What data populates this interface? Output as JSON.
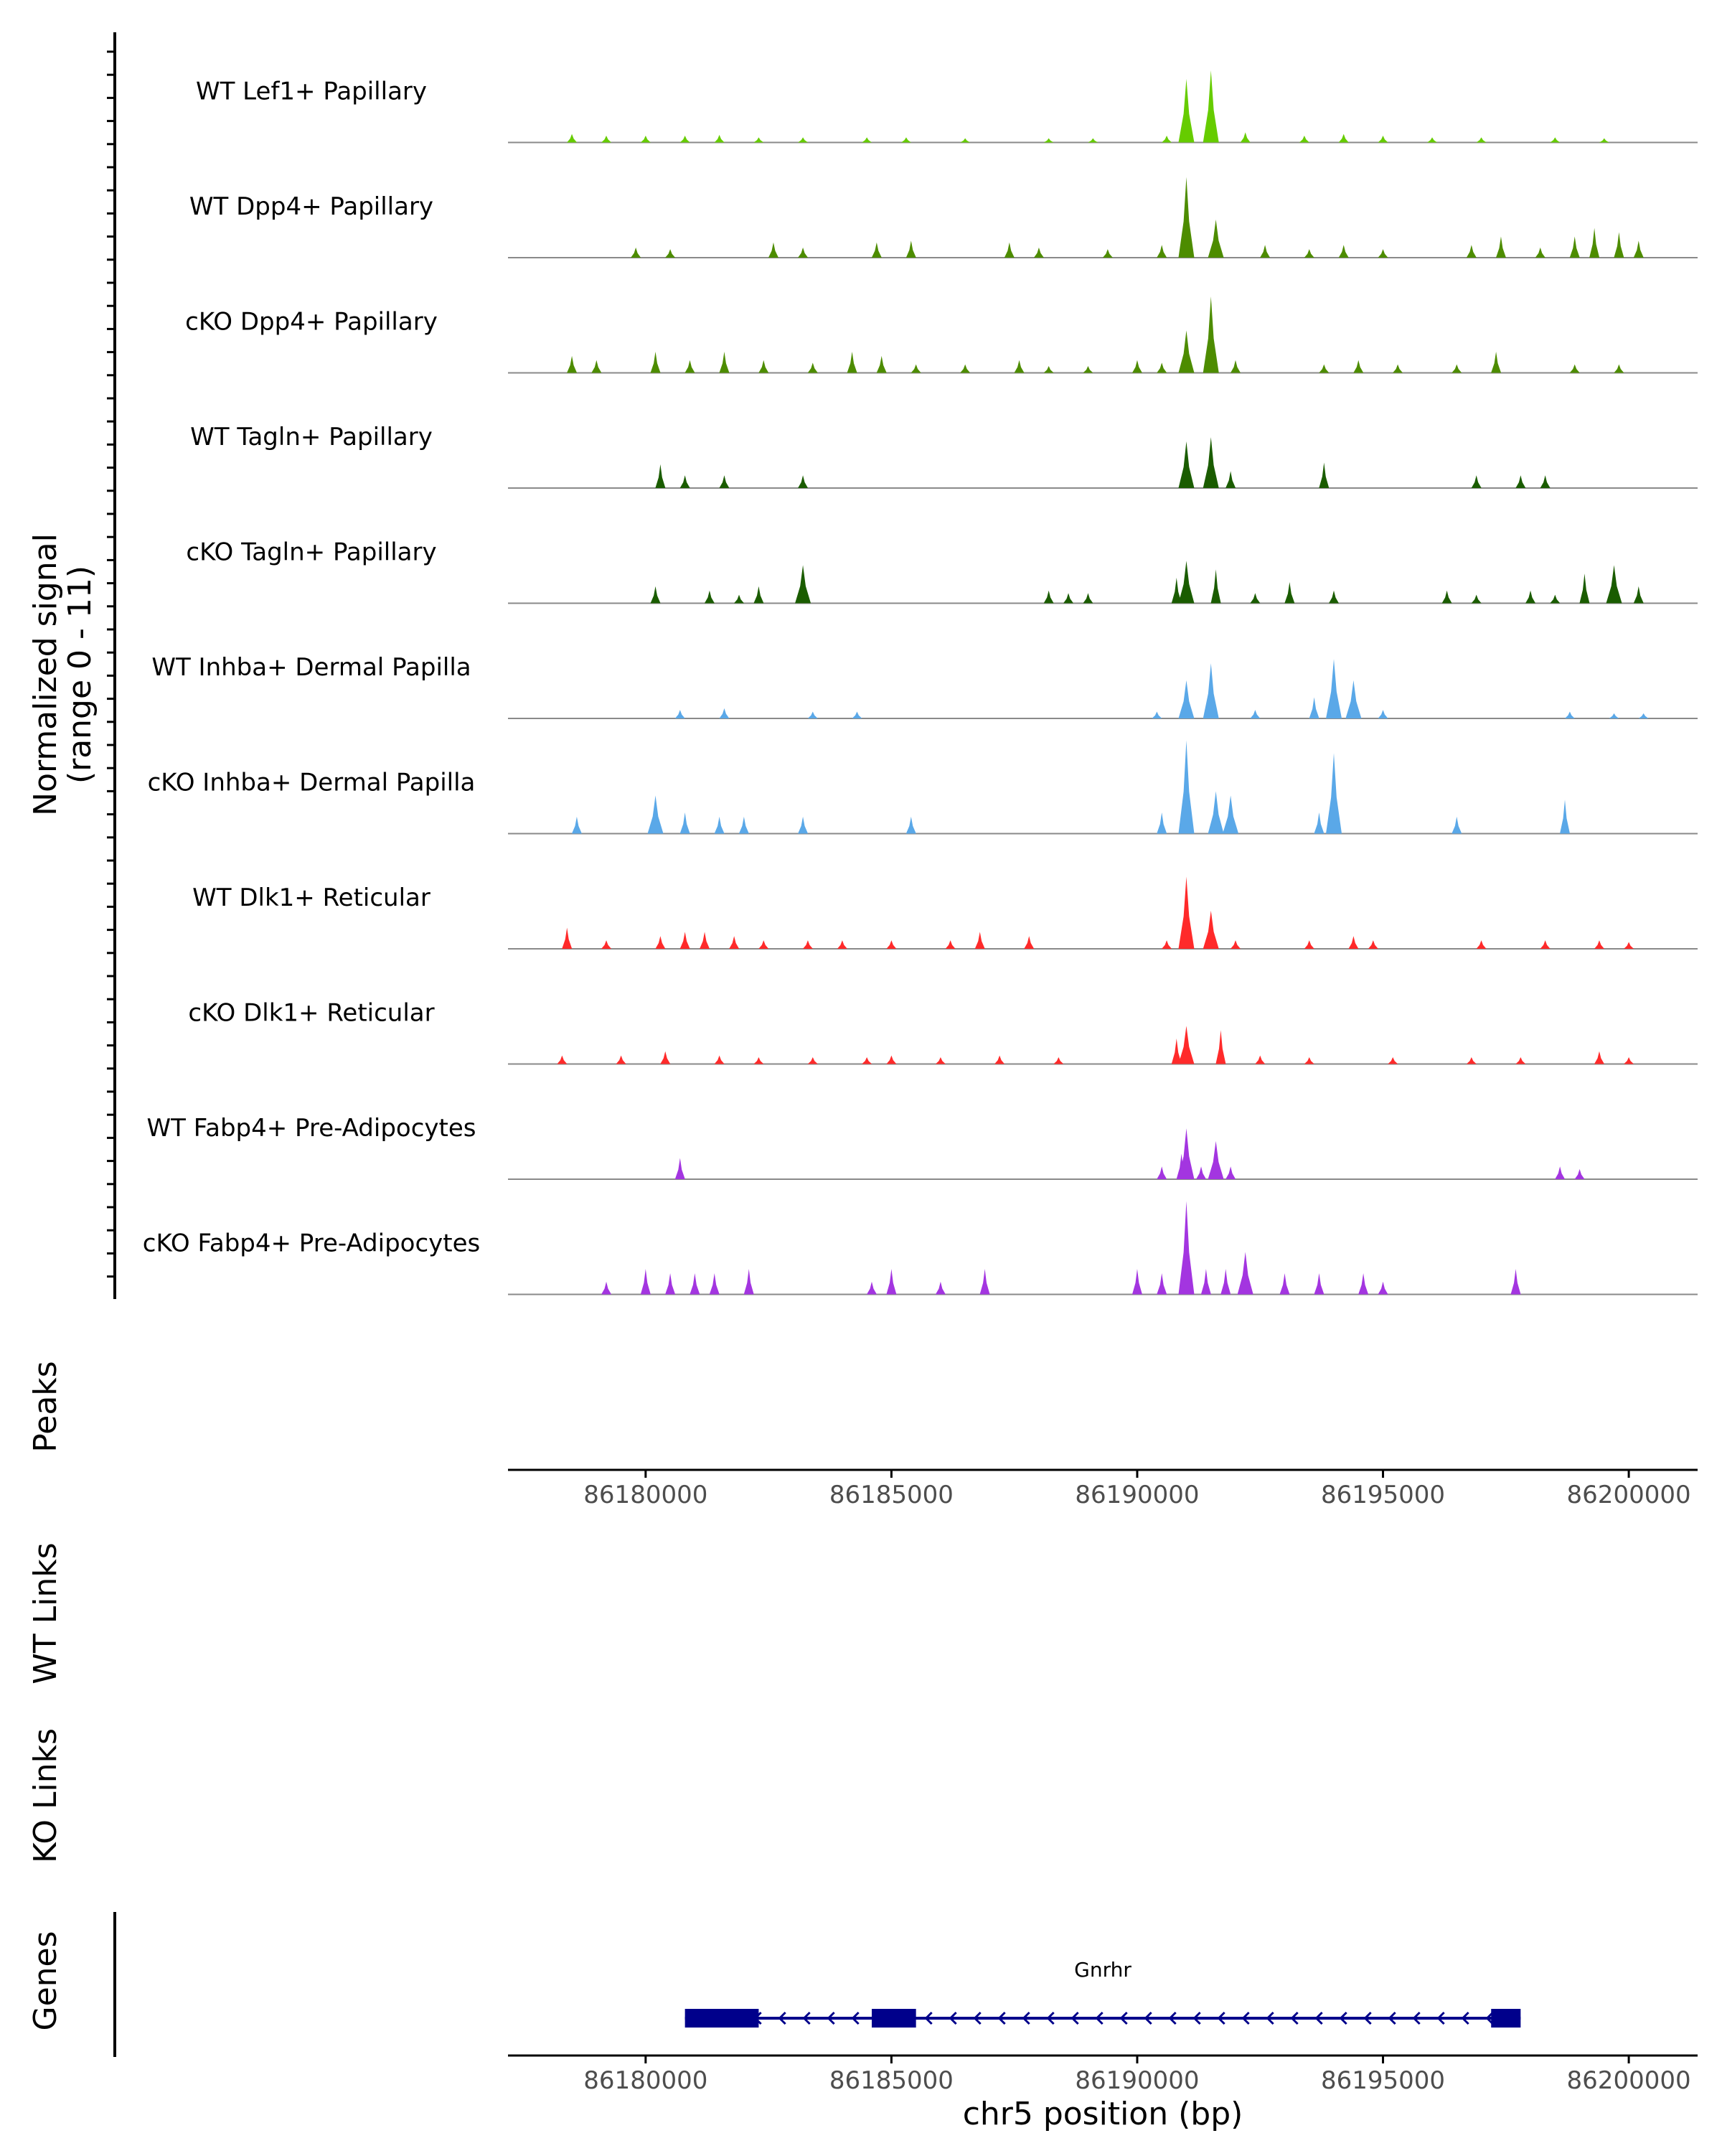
{
  "chart_data": {
    "type": "area",
    "title": "",
    "y_axis_label_line1": "Normalized signal",
    "y_axis_label_line2": "(range 0 - 11)",
    "ylim": [
      0,
      11
    ],
    "xlim": [
      86177200,
      86201400
    ],
    "xlabel": "chr5 position (bp)",
    "x_ticks": [
      86180000,
      86185000,
      86190000,
      86195000,
      86200000
    ],
    "x_tick_labels": [
      "86180000",
      "86185000",
      "86190000",
      "86195000",
      "86200000"
    ],
    "tracks": [
      {
        "name": "WT Lef1+ Papillary",
        "color": "#66cc00",
        "peaks": [
          [
            86178500,
            1.0
          ],
          [
            86179200,
            0.8
          ],
          [
            86180000,
            0.8
          ],
          [
            86180800,
            0.8
          ],
          [
            86181500,
            0.9
          ],
          [
            86182300,
            0.6
          ],
          [
            86183200,
            0.6
          ],
          [
            86184500,
            0.6
          ],
          [
            86185300,
            0.6
          ],
          [
            86186500,
            0.5
          ],
          [
            86188200,
            0.5
          ],
          [
            86189100,
            0.5
          ],
          [
            86190600,
            0.8
          ],
          [
            86191000,
            7.5
          ],
          [
            86191500,
            8.5
          ],
          [
            86192200,
            1.2
          ],
          [
            86193400,
            0.8
          ],
          [
            86194200,
            1.0
          ],
          [
            86195000,
            0.8
          ],
          [
            86196000,
            0.6
          ],
          [
            86197000,
            0.6
          ],
          [
            86198500,
            0.6
          ],
          [
            86199500,
            0.5
          ]
        ]
      },
      {
        "name": "WT Dpp4+ Papillary",
        "color": "#4d8c00",
        "peaks": [
          [
            86179800,
            1.2
          ],
          [
            86180500,
            1.0
          ],
          [
            86182600,
            1.8
          ],
          [
            86183200,
            1.2
          ],
          [
            86184700,
            1.8
          ],
          [
            86185400,
            2.0
          ],
          [
            86187400,
            1.8
          ],
          [
            86188000,
            1.2
          ],
          [
            86189400,
            1.0
          ],
          [
            86190500,
            1.5
          ],
          [
            86191000,
            9.5
          ],
          [
            86191600,
            4.5
          ],
          [
            86192600,
            1.5
          ],
          [
            86193500,
            1.0
          ],
          [
            86194200,
            1.5
          ],
          [
            86195000,
            1.0
          ],
          [
            86196800,
            1.5
          ],
          [
            86197400,
            2.5
          ],
          [
            86198200,
            1.2
          ],
          [
            86198900,
            2.5
          ],
          [
            86199300,
            3.5
          ],
          [
            86199800,
            3.0
          ],
          [
            86200200,
            2.0
          ]
        ]
      },
      {
        "name": "cKO Dpp4+ Papillary",
        "color": "#4d8c00",
        "peaks": [
          [
            86178500,
            2.0
          ],
          [
            86179000,
            1.5
          ],
          [
            86180200,
            2.5
          ],
          [
            86180900,
            1.5
          ],
          [
            86181600,
            2.5
          ],
          [
            86182400,
            1.5
          ],
          [
            86183400,
            1.2
          ],
          [
            86184200,
            2.5
          ],
          [
            86184800,
            2.0
          ],
          [
            86185500,
            1.0
          ],
          [
            86186500,
            1.0
          ],
          [
            86187600,
            1.5
          ],
          [
            86188200,
            0.8
          ],
          [
            86189000,
            0.8
          ],
          [
            86190000,
            1.5
          ],
          [
            86190500,
            1.2
          ],
          [
            86191000,
            5.0
          ],
          [
            86191500,
            9.0
          ],
          [
            86192000,
            1.5
          ],
          [
            86193800,
            1.0
          ],
          [
            86194500,
            1.5
          ],
          [
            86195300,
            1.0
          ],
          [
            86196500,
            1.0
          ],
          [
            86197300,
            2.5
          ],
          [
            86198900,
            1.0
          ],
          [
            86199800,
            1.0
          ]
        ]
      },
      {
        "name": "WT Tagln+ Papillary",
        "color": "#1a5c00",
        "peaks": [
          [
            86180300,
            2.8
          ],
          [
            86180800,
            1.5
          ],
          [
            86181600,
            1.5
          ],
          [
            86183200,
            1.5
          ],
          [
            86191000,
            5.5
          ],
          [
            86191500,
            6.0
          ],
          [
            86191900,
            2.0
          ],
          [
            86193800,
            3.0
          ],
          [
            86196900,
            1.5
          ],
          [
            86197800,
            1.5
          ],
          [
            86198300,
            1.5
          ]
        ]
      },
      {
        "name": "cKO Tagln+ Papillary",
        "color": "#1a5c00",
        "peaks": [
          [
            86180200,
            2.0
          ],
          [
            86181300,
            1.5
          ],
          [
            86181900,
            1.0
          ],
          [
            86182300,
            2.0
          ],
          [
            86183200,
            4.5
          ],
          [
            86188200,
            1.5
          ],
          [
            86188600,
            1.2
          ],
          [
            86189000,
            1.2
          ],
          [
            86190800,
            3.0
          ],
          [
            86191000,
            5.0
          ],
          [
            86191600,
            4.0
          ],
          [
            86192400,
            1.2
          ],
          [
            86193100,
            2.5
          ],
          [
            86194000,
            1.5
          ],
          [
            86196300,
            1.5
          ],
          [
            86196900,
            1.0
          ],
          [
            86198000,
            1.5
          ],
          [
            86198500,
            1.0
          ],
          [
            86199100,
            3.5
          ],
          [
            86199700,
            4.5
          ],
          [
            86200200,
            2.0
          ]
        ]
      },
      {
        "name": "WT Inhba+ Dermal Papilla",
        "color": "#5aa8e8",
        "peaks": [
          [
            86180700,
            1.0
          ],
          [
            86181600,
            1.2
          ],
          [
            86183400,
            0.8
          ],
          [
            86184300,
            0.8
          ],
          [
            86190400,
            0.8
          ],
          [
            86191000,
            4.5
          ],
          [
            86191500,
            6.5
          ],
          [
            86192400,
            1.0
          ],
          [
            86193600,
            2.5
          ],
          [
            86194000,
            7.0
          ],
          [
            86194400,
            4.5
          ],
          [
            86195000,
            1.0
          ],
          [
            86198800,
            0.8
          ],
          [
            86199700,
            0.6
          ],
          [
            86200300,
            0.6
          ]
        ]
      },
      {
        "name": "cKO Inhba+ Dermal Papilla",
        "color": "#5aa8e8",
        "peaks": [
          [
            86178600,
            2.0
          ],
          [
            86180200,
            4.5
          ],
          [
            86180800,
            2.5
          ],
          [
            86181500,
            2.0
          ],
          [
            86182000,
            2.0
          ],
          [
            86183200,
            2.0
          ],
          [
            86185400,
            2.0
          ],
          [
            86190500,
            2.5
          ],
          [
            86191000,
            11.0
          ],
          [
            86191600,
            5.0
          ],
          [
            86191900,
            4.5
          ],
          [
            86193700,
            2.5
          ],
          [
            86194000,
            9.5
          ],
          [
            86196500,
            2.0
          ],
          [
            86198700,
            4.0
          ]
        ]
      },
      {
        "name": "WT Dlk1+ Reticular",
        "color": "#ff2a2a",
        "peaks": [
          [
            86178400,
            2.5
          ],
          [
            86179200,
            1.0
          ],
          [
            86180300,
            1.5
          ],
          [
            86180800,
            2.0
          ],
          [
            86181200,
            2.0
          ],
          [
            86181800,
            1.5
          ],
          [
            86182400,
            1.0
          ],
          [
            86183300,
            1.0
          ],
          [
            86184000,
            1.0
          ],
          [
            86185000,
            1.0
          ],
          [
            86186200,
            1.0
          ],
          [
            86186800,
            2.0
          ],
          [
            86187800,
            1.5
          ],
          [
            86190600,
            1.0
          ],
          [
            86191000,
            8.5
          ],
          [
            86191500,
            4.5
          ],
          [
            86192000,
            1.0
          ],
          [
            86193500,
            1.0
          ],
          [
            86194400,
            1.5
          ],
          [
            86194800,
            1.0
          ],
          [
            86197000,
            1.0
          ],
          [
            86198300,
            1.0
          ],
          [
            86199400,
            1.0
          ],
          [
            86200000,
            0.8
          ]
        ]
      },
      {
        "name": "cKO Dlk1+ Reticular",
        "color": "#ff2a2a",
        "peaks": [
          [
            86178300,
            1.0
          ],
          [
            86179500,
            1.0
          ],
          [
            86180400,
            1.5
          ],
          [
            86181500,
            1.0
          ],
          [
            86182300,
            0.8
          ],
          [
            86183400,
            0.8
          ],
          [
            86184500,
            0.8
          ],
          [
            86185000,
            1.0
          ],
          [
            86186000,
            0.8
          ],
          [
            86187200,
            1.0
          ],
          [
            86188400,
            0.8
          ],
          [
            86190800,
            3.0
          ],
          [
            86191000,
            4.5
          ],
          [
            86191700,
            4.0
          ],
          [
            86192500,
            1.0
          ],
          [
            86193500,
            0.8
          ],
          [
            86195200,
            0.8
          ],
          [
            86196800,
            0.8
          ],
          [
            86197800,
            0.8
          ],
          [
            86199400,
            1.5
          ],
          [
            86200000,
            0.8
          ]
        ]
      },
      {
        "name": "WT Fabp4+ Pre-Adipocytes",
        "color": "#a335e0",
        "peaks": [
          [
            86180700,
            2.5
          ],
          [
            86190500,
            1.5
          ],
          [
            86190900,
            3.0
          ],
          [
            86191000,
            6.0
          ],
          [
            86191300,
            1.5
          ],
          [
            86191600,
            4.5
          ],
          [
            86191900,
            1.5
          ],
          [
            86198600,
            1.5
          ],
          [
            86199000,
            1.2
          ]
        ]
      },
      {
        "name": "cKO Fabp4+ Pre-Adipocytes",
        "color": "#a335e0",
        "peaks": [
          [
            86179200,
            1.5
          ],
          [
            86180000,
            3.0
          ],
          [
            86180500,
            2.5
          ],
          [
            86181000,
            2.5
          ],
          [
            86181400,
            2.5
          ],
          [
            86182100,
            3.0
          ],
          [
            86184600,
            1.5
          ],
          [
            86185000,
            3.0
          ],
          [
            86186000,
            1.5
          ],
          [
            86186900,
            3.0
          ],
          [
            86190000,
            3.0
          ],
          [
            86190500,
            2.5
          ],
          [
            86191000,
            11.0
          ],
          [
            86191400,
            3.0
          ],
          [
            86191800,
            3.0
          ],
          [
            86192200,
            5.0
          ],
          [
            86193000,
            2.5
          ],
          [
            86193700,
            2.5
          ],
          [
            86194600,
            2.5
          ],
          [
            86195000,
            1.5
          ],
          [
            86197700,
            3.0
          ]
        ]
      }
    ],
    "peaks_track_label": "Peaks",
    "wt_links_label": "WT Links",
    "ko_links_label": "KO Links",
    "genes_track_label": "Genes",
    "gene": {
      "name": "Gnrhr",
      "strand": "-",
      "start": 86180800,
      "end": 86197800,
      "exons": [
        [
          86180800,
          86182300
        ],
        [
          86184600,
          86185500
        ],
        [
          86197200,
          86197800
        ]
      ]
    }
  }
}
